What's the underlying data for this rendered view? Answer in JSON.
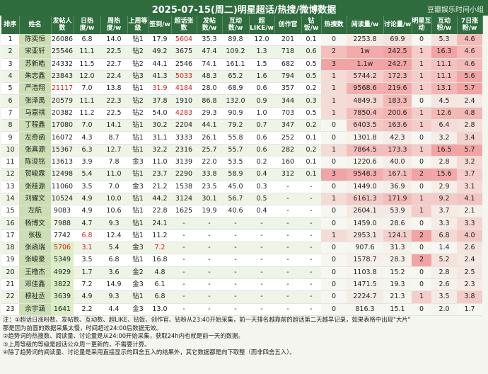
{
  "chart_data": {
    "type": "table",
    "title": "2025-07-15(周二)明星超话/热搜/微博数据",
    "subtitle": "豆瓣娱乐时间小组",
    "columns": [
      "排序",
      "姓名",
      "发帖人数",
      "日热度/w",
      "周热度/w",
      "上周等级",
      "签到/w",
      "超话张数",
      "发帖数/w",
      "互动数/w",
      "超LIKE/w",
      "创作官",
      "钻饭/w",
      "热搜数",
      "阅读量/w",
      "讨论量/w",
      "明星互动",
      "互动粉/w",
      "7日涨粉/w"
    ],
    "rows": [
      [
        "1",
        "陈奕恒",
        "26086",
        "6.8",
        "14.0",
        "钻1",
        "17.9",
        "5604",
        "35.3",
        "89.8",
        "12.0",
        "201",
        "0.1",
        "0",
        "2253.8",
        "69.9",
        "0",
        "5.3",
        "4.6"
      ],
      [
        "2",
        "宋亚轩",
        "25546",
        "11.1",
        "22.5",
        "钻2",
        "49.2",
        "3675",
        "47.4",
        "109.2",
        "1.3",
        "718",
        "0.6",
        "2",
        "1w",
        "242.5",
        "1",
        "16.3",
        "4.6"
      ],
      [
        "3",
        "苏新皓",
        "24332",
        "11.5",
        "22.7",
        "钻2",
        "44.1",
        "2546",
        "74.1",
        "161.1",
        "1.5",
        "682",
        "0.5",
        "3",
        "1.1w",
        "242.7",
        "1",
        "11.1",
        "4.6"
      ],
      [
        "4",
        "朱志鑫",
        "23843",
        "12.0",
        "22.4",
        "钻3",
        "41.3",
        "5033",
        "48.3",
        "65.2",
        "1.6",
        "794",
        "0.5",
        "1",
        "5744.2",
        "172.3",
        "1",
        "11.1",
        "5.6"
      ],
      [
        "5",
        "严浩翔",
        "21117",
        "7.0",
        "13.8",
        "钻1",
        "31.9",
        "4184",
        "28.0",
        "68.9",
        "0.6",
        "357",
        "0.2",
        "1",
        "9568.6",
        "219.6",
        "1",
        "13.1",
        "5.7"
      ],
      [
        "6",
        "张泽禹",
        "20579",
        "11.1",
        "22.3",
        "钻2",
        "37.8",
        "1910",
        "86.8",
        "132.0",
        "0.9",
        "344",
        "0.3",
        "1",
        "4849.3",
        "183.3",
        "0",
        "4.5",
        "2.4"
      ],
      [
        "7",
        "马嘉祺",
        "20382",
        "11.2",
        "22.5",
        "钻2",
        "54.0",
        "4283",
        "29.3",
        "90.9",
        "1.0",
        "703",
        "0.5",
        "1",
        "7850.4",
        "200.6",
        "1",
        "12.6",
        "4.8"
      ],
      [
        "8",
        "丁程鑫",
        "17080",
        "7.0",
        "14.1",
        "钻1",
        "30.2",
        "2204",
        "44.1",
        "79.2",
        "0.7",
        "347",
        "0.2",
        "0",
        "6403.5",
        "163.6",
        "1",
        "6.4",
        "2.8"
      ],
      [
        "9",
        "左奇函",
        "16072",
        "4.3",
        "8.7",
        "钻1",
        "31.1",
        "3333",
        "26.1",
        "55.8",
        "0.6",
        "252",
        "0.1",
        "0",
        "1301.8",
        "42.3",
        "0",
        "3.2",
        "3.4"
      ],
      [
        "10",
        "张真源",
        "15367",
        "6.3",
        "12.7",
        "钻1",
        "32.2",
        "2316",
        "25.7",
        "55.7",
        "0.6",
        "282",
        "0.2",
        "1",
        "7864.5",
        "173.3",
        "1",
        "16.5",
        "5.7"
      ],
      [
        "11",
        "陈浚铭",
        "13613",
        "3.9",
        "7.8",
        "金3",
        "11.0",
        "3139",
        "22.0",
        "53.5",
        "0.2",
        "160",
        "0.1",
        "0",
        "1220.6",
        "40.0",
        "0",
        "2.8",
        "3.2"
      ],
      [
        "12",
        "贺峻霖",
        "12498",
        "5.4",
        "11.0",
        "钻1",
        "23.7",
        "2290",
        "33.8",
        "58.9",
        "0.4",
        "312",
        "0.1",
        "3",
        "9548.3",
        "167.1",
        "2",
        "15.6",
        "3.7"
      ],
      [
        "13",
        "张桂源",
        "11060",
        "3.5",
        "7.0",
        "金3",
        "21.2",
        "1538",
        "23.5",
        "45.0",
        "0.3",
        "-",
        "-",
        "0",
        "1449.0",
        "36.9",
        "0",
        "2.9",
        "3.1"
      ],
      [
        "14",
        "刘耀文",
        "10524",
        "4.9",
        "10.0",
        "钻1",
        "44.2",
        "3124",
        "30.1",
        "56.7",
        "0.5",
        "-",
        "-",
        "1",
        "6161.3",
        "171.9",
        "1",
        "9.2",
        "4.1"
      ],
      [
        "15",
        "左航",
        "9083",
        "4.9",
        "10.6",
        "钻1",
        "22.8",
        "1625",
        "19.9",
        "40.6",
        "0.4",
        "-",
        "-",
        "0",
        "2604.1",
        "53.9",
        "1",
        "3.7",
        "2.1"
      ],
      [
        "16",
        "杨博文",
        "7988",
        "4.7",
        "9.3",
        "钻1",
        "24.1",
        "-",
        "-",
        "-",
        "-",
        "-",
        "-",
        "0",
        "1459.0",
        "28.6",
        "0",
        "3.3",
        "3.3"
      ],
      [
        "17",
        "张极",
        "7742",
        "6.8",
        "12.4",
        "钻1",
        "11.2",
        "-",
        "-",
        "-",
        "-",
        "-",
        "-",
        "1",
        "2953.1",
        "124.1",
        "2",
        "6.8",
        "4.0"
      ],
      [
        "18",
        "张函瑞",
        "5706",
        "3.1",
        "5.4",
        "金3",
        "7.2",
        "-",
        "-",
        "-",
        "-",
        "-",
        "-",
        "0",
        "907.6",
        "31.3",
        "0",
        "1.4",
        "2.6"
      ],
      [
        "19",
        "张峻豪",
        "5349",
        "3.5",
        "6.8",
        "钻1",
        "16.8",
        "-",
        "-",
        "-",
        "-",
        "-",
        "-",
        "0",
        "1578.7",
        "28.3",
        "2",
        "5.2",
        "2.4"
      ],
      [
        "20",
        "王橹杰",
        "4929",
        "1.7",
        "3.6",
        "金2",
        "4.8",
        "-",
        "-",
        "-",
        "-",
        "-",
        "-",
        "0",
        "1103.8",
        "15.2",
        "0",
        "2.8",
        "2.5"
      ],
      [
        "21",
        "邓佳鑫",
        "3822",
        "7.2",
        "14.9",
        "金3",
        "6.1",
        "-",
        "-",
        "-",
        "-",
        "-",
        "-",
        "0",
        "1471.5",
        "19.3",
        "0",
        "2.6",
        "2.3"
      ],
      [
        "22",
        "穆祉丞",
        "3639",
        "4.9",
        "9.3",
        "钻1",
        "6.8",
        "-",
        "-",
        "-",
        "-",
        "-",
        "-",
        "0",
        "2224.7",
        "21.3",
        "1",
        "3.5",
        "3.8"
      ],
      [
        "23",
        "余宇涵",
        "1641",
        "2.2",
        "4.4",
        "金3",
        "13.0",
        "-",
        "-",
        "-",
        "-",
        "-",
        "-",
        "0",
        "816.3",
        "15.1",
        "0",
        "2.0",
        "1.7"
      ]
    ],
    "highlights": {
      "red_cells": [
        [
          0,
          7
        ],
        [
          3,
          7
        ],
        [
          4,
          2
        ],
        [
          4,
          6
        ],
        [
          4,
          7
        ],
        [
          6,
          7
        ],
        [
          16,
          3
        ],
        [
          17,
          2
        ],
        [
          17,
          3
        ],
        [
          17,
          6
        ]
      ],
      "name_column_color": "#ccdfb4",
      "gradient_columns": [
        13,
        14,
        15,
        16,
        17,
        18
      ],
      "gradient_low": "#f5f7f0",
      "gradient_high": "#f2a3a3",
      "green_low_column": 2,
      "green_low_color": "#dbeec5"
    },
    "notes": [
      "注：①超话日涨粉数、发帖数、互动数、超LIKE、钻饭、创作官、钻粉从23:40开始采集，前一天排名越靠前的超话第二天越早记录，如果表格中出现\"大片\"",
      "      那是因为前面的数据采集太慢，时间超过24:00后数据无效。",
      "②趋势词的热搜数、阅读量、讨论量是从24:00开始采集，获取24h内也就是前一天的数据。",
      "③上周等级的等级是超话公众周一更新的，不需要计算。",
      "④除了趋势词的阅读量、讨论量是采用直接显示的四舍五入的结果外，其它数据都是向下取整（而非四舍五入）。"
    ]
  }
}
